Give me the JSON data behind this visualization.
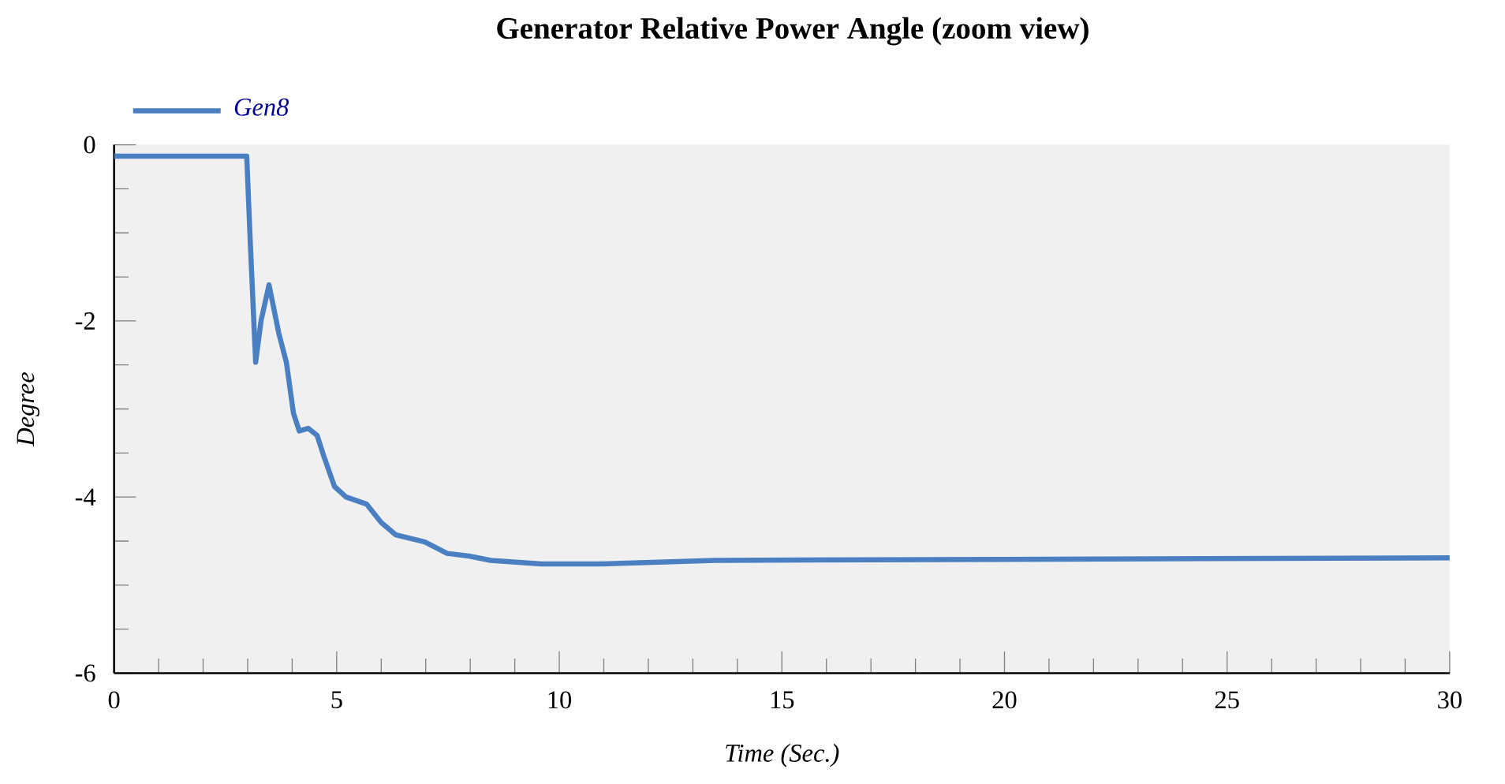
{
  "chart_data": {
    "type": "line",
    "title": "Generator Relative Power Angle  (zoom view)",
    "xlabel": "Time (Sec.)",
    "ylabel": "Degree",
    "xlim": [
      0,
      30
    ],
    "ylim": [
      -6,
      0
    ],
    "xticks": [
      0,
      5,
      10,
      15,
      20,
      25,
      30
    ],
    "yticks": [
      0,
      -2,
      -4,
      -6
    ],
    "legend": "top left",
    "grid": false,
    "series": [
      {
        "name": "Gen8",
        "color": "#4a7fc1",
        "x": [
          0,
          2.98,
          3.05,
          3.18,
          3.3,
          3.48,
          3.7,
          3.87,
          4.03,
          4.16,
          4.36,
          4.56,
          4.72,
          4.95,
          5.21,
          5.67,
          6.0,
          6.33,
          6.98,
          7.48,
          7.97,
          8.46,
          9.6,
          10.9,
          13.5,
          18.5,
          30
        ],
        "values": [
          -0.13,
          -0.13,
          -1.0,
          -2.47,
          -2.0,
          -1.59,
          -2.14,
          -2.47,
          -3.05,
          -3.25,
          -3.22,
          -3.3,
          -3.55,
          -3.88,
          -4.0,
          -4.08,
          -4.29,
          -4.43,
          -4.51,
          -4.64,
          -4.67,
          -4.72,
          -4.76,
          -4.76,
          -4.72,
          -4.71,
          -4.69
        ]
      }
    ]
  }
}
